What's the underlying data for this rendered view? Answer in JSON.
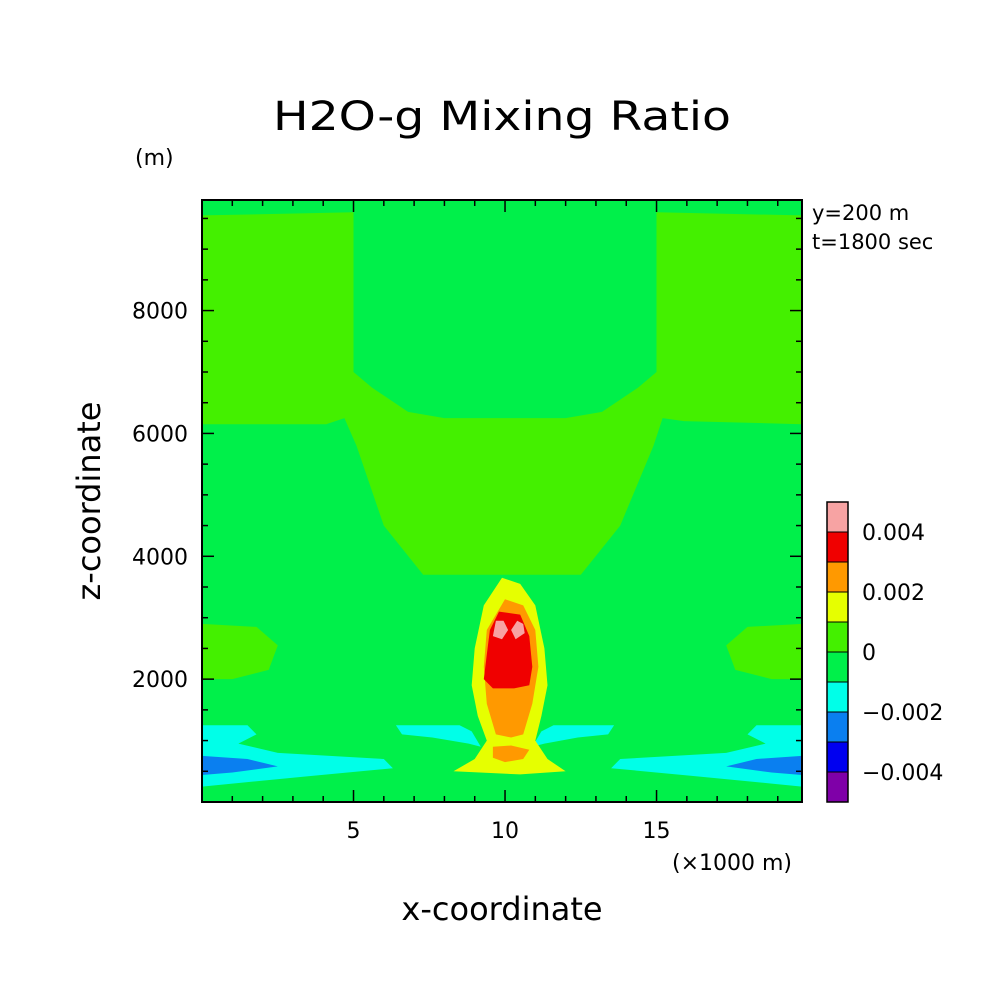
{
  "chart_data": {
    "type": "heatmap",
    "title": "H2O-g Mixing Ratio",
    "xlabel": "x-coordinate",
    "ylabel": "z-coordinate",
    "x_unit": "(×1000 m)",
    "y_unit": "(m)",
    "annotations": [
      "y=200 m",
      "t=1800 sec"
    ],
    "xlim": [
      0,
      19.8
    ],
    "ylim": [
      0,
      9800
    ],
    "x_ticks": [
      5,
      10,
      15
    ],
    "x_tick_labels": [
      "5",
      "10",
      "15"
    ],
    "y_ticks": [
      2000,
      4000,
      6000,
      8000
    ],
    "y_tick_labels": [
      "2000",
      "4000",
      "6000",
      "8000"
    ],
    "colorbar": {
      "levels": [
        -0.005,
        -0.004,
        -0.003,
        -0.002,
        -0.001,
        0,
        0.001,
        0.002,
        0.003,
        0.004,
        0.005
      ],
      "colors": [
        "#7f00a8",
        "#0000f0",
        "#0a7ff0",
        "#00ffe8",
        "#00f04a",
        "#44f000",
        "#e6ff00",
        "#ff9900",
        "#f00000",
        "#f7a3a3"
      ],
      "tick_values": [
        -0.004,
        -0.002,
        0,
        0.002,
        0.004
      ],
      "tick_labels": [
        "−0.004",
        "−0.002",
        "0",
        "0.002",
        "0.004"
      ]
    },
    "background_color": "#00f04a",
    "regions": [
      {
        "name": "upper-left-moist",
        "color": "#44f000",
        "points": [
          [
            0,
            9550
          ],
          [
            5,
            9600
          ],
          [
            5,
            7000
          ],
          [
            5.6,
            6750
          ],
          [
            6.8,
            6350
          ],
          [
            8,
            6250
          ],
          [
            12,
            6250
          ],
          [
            13.2,
            6350
          ],
          [
            14.4,
            6750
          ],
          [
            15,
            7000
          ],
          [
            15,
            9600
          ],
          [
            19.8,
            9550
          ],
          [
            19.8,
            6150
          ],
          [
            15.9,
            6200
          ],
          [
            15.2,
            6250
          ],
          [
            14.9,
            5800
          ],
          [
            13.8,
            4500
          ],
          [
            12.5,
            3700
          ],
          [
            7.3,
            3700
          ],
          [
            6,
            4500
          ],
          [
            5.1,
            5800
          ],
          [
            4.7,
            6250
          ],
          [
            4.1,
            6150
          ],
          [
            0,
            6150
          ]
        ]
      },
      {
        "name": "left-moist-lobe",
        "color": "#44f000",
        "points": [
          [
            0,
            2900
          ],
          [
            1.8,
            2850
          ],
          [
            2.5,
            2550
          ],
          [
            2.2,
            2150
          ],
          [
            1,
            2000
          ],
          [
            0,
            2000
          ]
        ]
      },
      {
        "name": "right-moist-lobe",
        "color": "#44f000",
        "points": [
          [
            19.8,
            2900
          ],
          [
            18,
            2850
          ],
          [
            17.3,
            2550
          ],
          [
            17.6,
            2150
          ],
          [
            18.8,
            2000
          ],
          [
            19.8,
            2000
          ]
        ]
      },
      {
        "name": "left-dry-band",
        "color": "#00ffe8",
        "points": [
          [
            0,
            1250
          ],
          [
            1.5,
            1250
          ],
          [
            1.8,
            1100
          ],
          [
            1.2,
            950
          ],
          [
            2.5,
            800
          ],
          [
            6,
            700
          ],
          [
            6.3,
            550
          ],
          [
            3.5,
            420
          ],
          [
            1,
            300
          ],
          [
            0,
            250
          ]
        ]
      },
      {
        "name": "right-dry-band",
        "color": "#00ffe8",
        "points": [
          [
            19.8,
            1250
          ],
          [
            18.3,
            1250
          ],
          [
            18,
            1100
          ],
          [
            18.6,
            950
          ],
          [
            17.3,
            800
          ],
          [
            13.8,
            700
          ],
          [
            13.5,
            550
          ],
          [
            16.3,
            420
          ],
          [
            18.8,
            300
          ],
          [
            19.8,
            250
          ]
        ]
      },
      {
        "name": "left-dry-core",
        "color": "#0a7ff0",
        "points": [
          [
            0,
            750
          ],
          [
            1.5,
            700
          ],
          [
            2.5,
            580
          ],
          [
            1,
            480
          ],
          [
            0,
            440
          ]
        ]
      },
      {
        "name": "right-dry-core",
        "color": "#0a7ff0",
        "points": [
          [
            19.8,
            750
          ],
          [
            18.3,
            700
          ],
          [
            17.3,
            580
          ],
          [
            18.8,
            480
          ],
          [
            19.8,
            440
          ]
        ]
      },
      {
        "name": "left-mid-dry",
        "color": "#00ffe8",
        "points": [
          [
            6.4,
            1250
          ],
          [
            8.5,
            1250
          ],
          [
            8.9,
            1150
          ],
          [
            9.2,
            900
          ],
          [
            8.8,
            950
          ],
          [
            7.6,
            1050
          ],
          [
            6.6,
            1100
          ]
        ]
      },
      {
        "name": "right-mid-dry",
        "color": "#00ffe8",
        "points": [
          [
            13.6,
            1250
          ],
          [
            11.6,
            1250
          ],
          [
            11.2,
            1150
          ],
          [
            10.9,
            900
          ],
          [
            11.3,
            950
          ],
          [
            12.4,
            1050
          ],
          [
            13.4,
            1100
          ]
        ]
      },
      {
        "name": "plume-yellow",
        "color": "#e6ff00",
        "points": [
          [
            9.9,
            3650
          ],
          [
            10.5,
            3550
          ],
          [
            11,
            3200
          ],
          [
            11.3,
            2500
          ],
          [
            11.4,
            1900
          ],
          [
            11.2,
            1400
          ],
          [
            11,
            1000
          ],
          [
            11.4,
            700
          ],
          [
            12,
            500
          ],
          [
            10.5,
            450
          ],
          [
            8.3,
            500
          ],
          [
            9,
            700
          ],
          [
            9.4,
            1000
          ],
          [
            9.1,
            1400
          ],
          [
            8.9,
            1900
          ],
          [
            9,
            2500
          ],
          [
            9.3,
            3200
          ]
        ]
      },
      {
        "name": "plume-orange",
        "color": "#ff9900",
        "points": [
          [
            10,
            3300
          ],
          [
            10.6,
            3200
          ],
          [
            11,
            2800
          ],
          [
            11.1,
            2200
          ],
          [
            10.9,
            1600
          ],
          [
            10.6,
            1100
          ],
          [
            10.2,
            1050
          ],
          [
            9.7,
            1100
          ],
          [
            9.4,
            1600
          ],
          [
            9.3,
            2200
          ],
          [
            9.4,
            2800
          ]
        ]
      },
      {
        "name": "plume-base-orange",
        "color": "#ff9900",
        "points": [
          [
            9.6,
            900
          ],
          [
            10.2,
            920
          ],
          [
            10.8,
            850
          ],
          [
            10.6,
            700
          ],
          [
            10,
            650
          ],
          [
            9.6,
            720
          ]
        ]
      },
      {
        "name": "plume-red",
        "color": "#f00000",
        "points": [
          [
            9.8,
            3100
          ],
          [
            10.5,
            3050
          ],
          [
            10.8,
            2700
          ],
          [
            10.9,
            2200
          ],
          [
            10.8,
            1900
          ],
          [
            10.3,
            1850
          ],
          [
            9.6,
            1850
          ],
          [
            9.3,
            2000
          ],
          [
            9.4,
            2400
          ],
          [
            9.5,
            2800
          ]
        ]
      },
      {
        "name": "plume-pink-left",
        "color": "#f7a3a3",
        "points": [
          [
            9.7,
            2950
          ],
          [
            9.95,
            2950
          ],
          [
            10.1,
            2800
          ],
          [
            9.9,
            2650
          ],
          [
            9.6,
            2700
          ]
        ]
      },
      {
        "name": "plume-pink-right",
        "color": "#f7a3a3",
        "points": [
          [
            10.4,
            2950
          ],
          [
            10.6,
            2900
          ],
          [
            10.65,
            2750
          ],
          [
            10.35,
            2650
          ],
          [
            10.2,
            2800
          ]
        ]
      }
    ]
  }
}
